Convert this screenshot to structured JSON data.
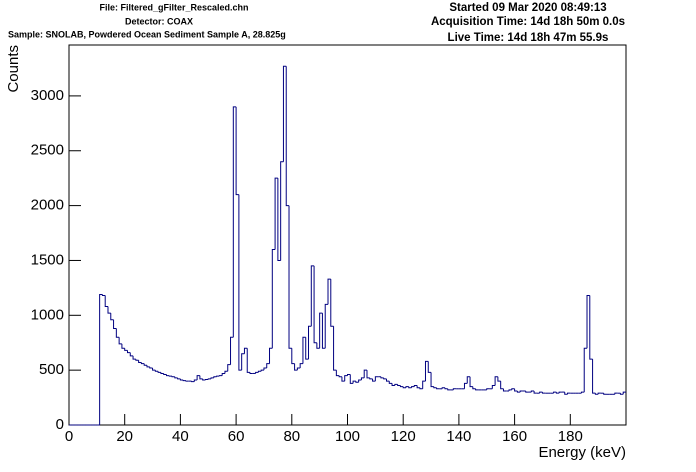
{
  "chart_data": {
    "type": "histogram",
    "file_label": "File: Filtered_gFilter_Rescaled.chn",
    "detector_label": "Detector: COAX",
    "sample_label": "Sample: SNOLAB, Powdered Ocean Sediment Sample A, 28.825g",
    "started_label": "Started 09 Mar 2020 08:49:13",
    "acquisition_label": "Acquisition Time: 14d 18h 50m 0.0s",
    "live_label": "Live Time: 14d 18h 47m 55.9s",
    "xlabel": "Energy (keV)",
    "ylabel": "Counts",
    "color": "#000080",
    "xlim": [
      0,
      200
    ],
    "ylim": [
      0,
      3464
    ],
    "xticks": [
      0,
      20,
      40,
      60,
      80,
      100,
      120,
      140,
      160,
      180
    ],
    "yticks": [
      0,
      500,
      1000,
      1500,
      2000,
      2500,
      3000
    ],
    "bins": [
      0,
      1,
      2,
      3,
      4,
      5,
      6,
      7,
      8,
      9,
      10,
      11,
      12,
      13,
      14,
      15,
      16,
      17,
      18,
      19,
      20,
      21,
      22,
      23,
      24,
      25,
      26,
      27,
      28,
      29,
      30,
      31,
      32,
      33,
      34,
      35,
      36,
      37,
      38,
      39,
      40,
      41,
      42,
      43,
      44,
      45,
      46,
      47,
      48,
      49,
      50,
      51,
      52,
      53,
      54,
      55,
      56,
      57,
      58,
      59,
      60,
      61,
      62,
      63,
      64,
      65,
      66,
      67,
      68,
      69,
      70,
      71,
      72,
      73,
      74,
      75,
      76,
      77,
      78,
      79,
      80,
      81,
      82,
      83,
      84,
      85,
      86,
      87,
      88,
      89,
      90,
      91,
      92,
      93,
      94,
      95,
      96,
      97,
      98,
      99,
      100,
      101,
      102,
      103,
      104,
      105,
      106,
      107,
      108,
      109,
      110,
      111,
      112,
      113,
      114,
      115,
      116,
      117,
      118,
      119,
      120,
      121,
      122,
      123,
      124,
      125,
      126,
      127,
      128,
      129,
      130,
      131,
      132,
      133,
      134,
      135,
      136,
      137,
      138,
      139,
      140,
      141,
      142,
      143,
      144,
      145,
      146,
      147,
      148,
      149,
      150,
      151,
      152,
      153,
      154,
      155,
      156,
      157,
      158,
      159,
      160,
      161,
      162,
      163,
      164,
      165,
      166,
      167,
      168,
      169,
      170,
      171,
      172,
      173,
      174,
      175,
      176,
      177,
      178,
      179,
      180,
      181,
      182,
      183,
      184,
      185,
      186,
      187,
      188,
      189,
      190,
      191,
      192,
      193,
      194,
      195,
      196,
      197,
      198,
      199,
      200
    ],
    "counts": [
      0,
      0,
      0,
      0,
      0,
      0,
      0,
      0,
      0,
      0,
      0,
      1190,
      1180,
      1080,
      1020,
      960,
      880,
      800,
      740,
      700,
      680,
      660,
      630,
      600,
      590,
      570,
      560,
      545,
      530,
      520,
      500,
      490,
      480,
      470,
      460,
      450,
      445,
      440,
      430,
      420,
      410,
      405,
      400,
      400,
      395,
      410,
      450,
      420,
      410,
      415,
      420,
      430,
      440,
      445,
      450,
      470,
      490,
      550,
      800,
      2900,
      2100,
      500,
      650,
      700,
      480,
      470,
      470,
      480,
      490,
      500,
      520,
      560,
      700,
      1600,
      2250,
      1500,
      2400,
      3270,
      2000,
      700,
      560,
      500,
      520,
      560,
      800,
      600,
      900,
      1450,
      750,
      700,
      1020,
      700,
      1100,
      1330,
      900,
      500,
      450,
      440,
      400,
      450,
      460,
      380,
      400,
      390,
      410,
      430,
      500,
      430,
      420,
      400,
      440,
      440,
      430,
      420,
      400,
      380,
      360,
      370,
      360,
      350,
      340,
      350,
      340,
      350,
      360,
      340,
      330,
      400,
      580,
      480,
      350,
      340,
      330,
      330,
      340,
      330,
      320,
      320,
      330,
      330,
      330,
      330,
      380,
      440,
      350,
      330,
      320,
      320,
      320,
      320,
      330,
      330,
      360,
      440,
      400,
      330,
      310,
      310,
      320,
      330,
      310,
      300,
      310,
      310,
      300,
      300,
      310,
      290,
      290,
      300,
      290,
      290,
      290,
      290,
      300,
      290,
      300,
      300,
      280,
      290,
      290,
      290,
      290,
      290,
      300,
      700,
      1180,
      600,
      290,
      280,
      290,
      290,
      280,
      280,
      280,
      280,
      290,
      290,
      280,
      300
    ]
  }
}
